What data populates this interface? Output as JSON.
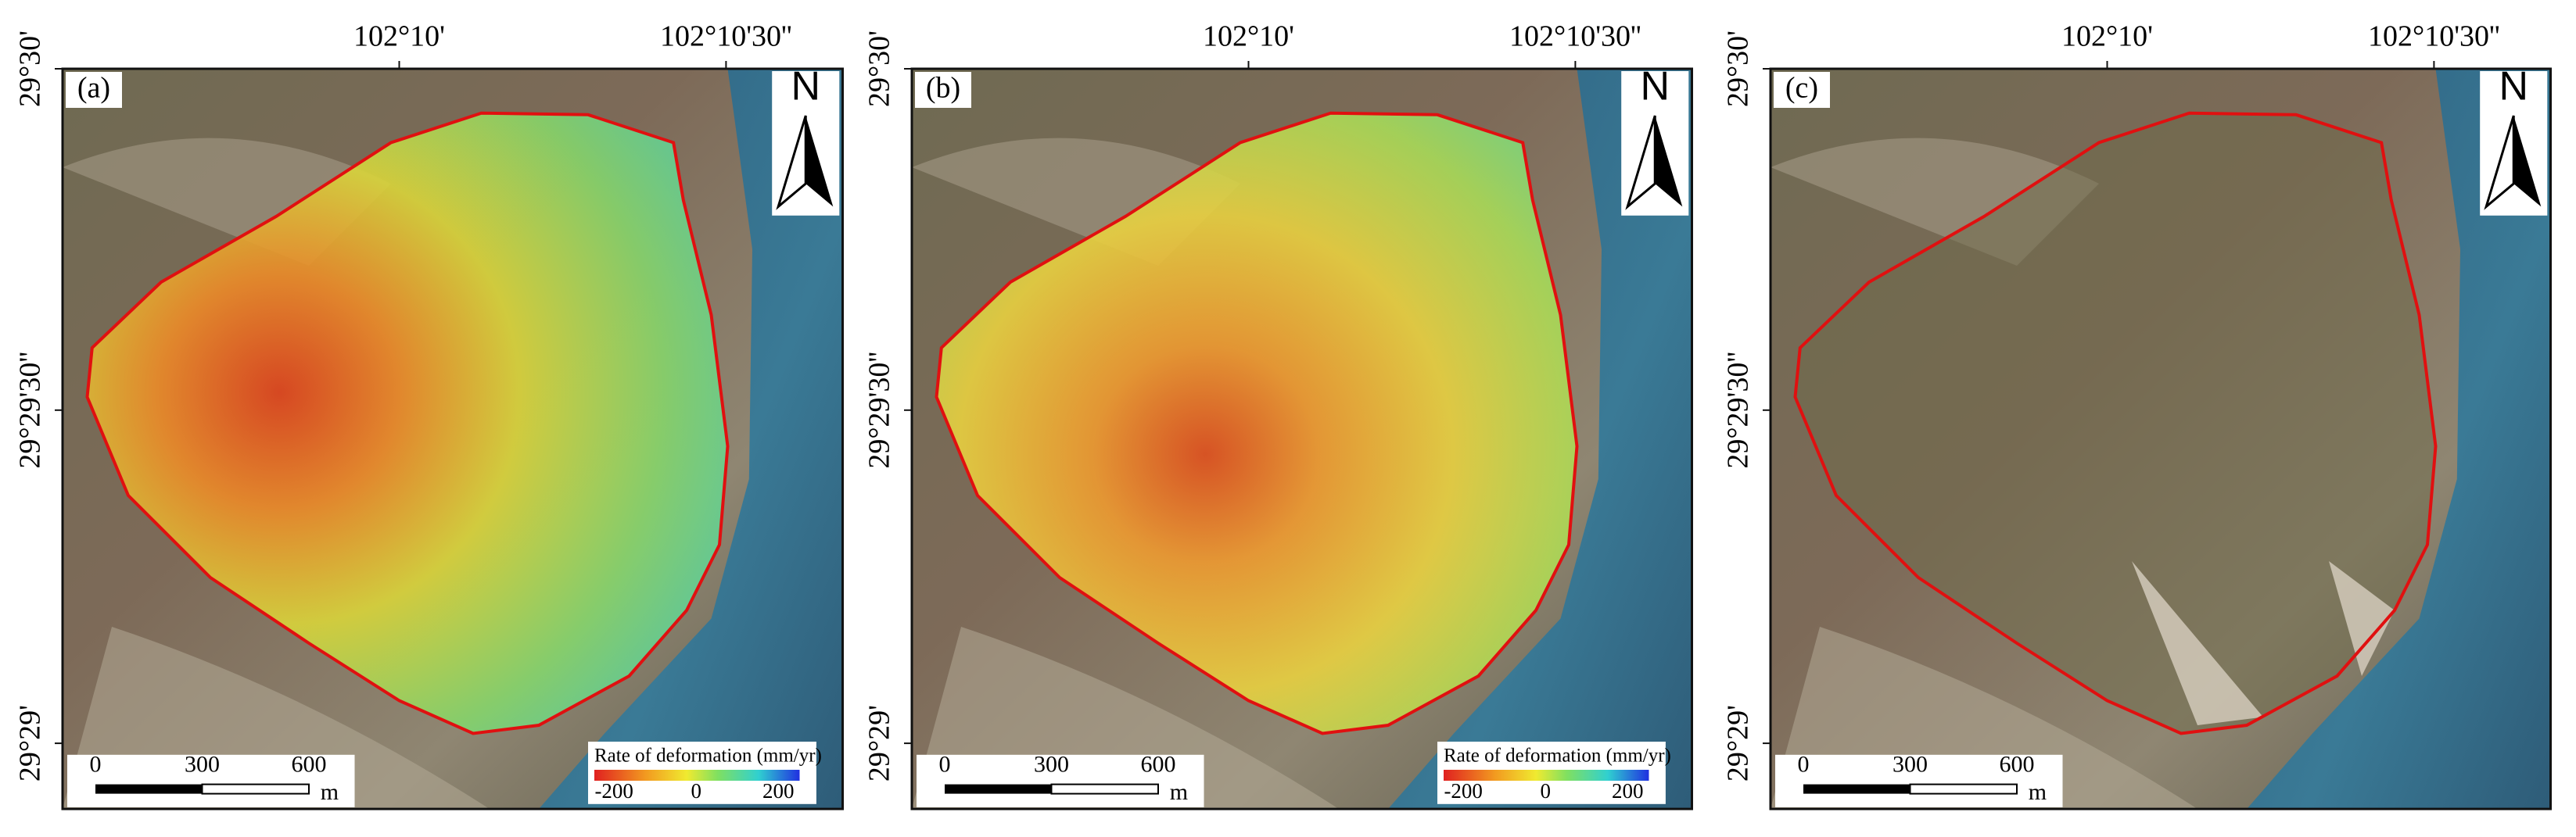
{
  "panels": [
    {
      "label": "(a)",
      "lon_ticks": [
        "102°10'",
        "102°10'30''"
      ],
      "lat_ticks": [
        "29°30'",
        "29°29'30''",
        "29°29'"
      ],
      "north": "N",
      "scale_bar": {
        "ticks": [
          "0",
          "300",
          "600"
        ],
        "unit": "m"
      },
      "legend": {
        "title": "Rate of deformation (mm/yr)",
        "ticks": [
          "-200",
          "0",
          "200"
        ]
      }
    },
    {
      "label": "(b)",
      "lon_ticks": [
        "102°10'",
        "102°10'30''"
      ],
      "lat_ticks": [
        "29°30'",
        "29°29'30''",
        "29°29'"
      ],
      "north": "N",
      "scale_bar": {
        "ticks": [
          "0",
          "300",
          "600"
        ],
        "unit": "m"
      },
      "legend": {
        "title": "Rate of deformation (mm/yr)",
        "ticks": [
          "-200",
          "0",
          "200"
        ]
      }
    },
    {
      "label": "(c)",
      "lon_ticks": [
        "102°10'",
        "102°10'30''"
      ],
      "lat_ticks": [
        "29°30'",
        "29°29'30''",
        "29°29'"
      ],
      "north": "N",
      "scale_bar": {
        "ticks": [
          "0",
          "300",
          "600"
        ],
        "unit": "m"
      }
    }
  ]
}
